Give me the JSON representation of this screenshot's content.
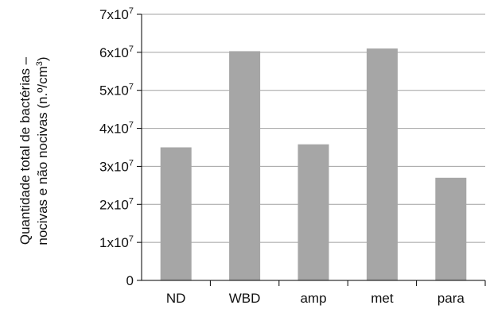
{
  "chart_data": {
    "type": "bar",
    "title": "",
    "xlabel": "",
    "ylabel_line1": "Quantidade total de bactérias –",
    "ylabel_line2_prefix": "nocivas e não nocivas (n.º/cm",
    "ylabel_line2_sup": "3",
    "ylabel_line2_suffix": ")",
    "categories": [
      "ND",
      "WBD",
      "amp",
      "met",
      "para"
    ],
    "values": [
      35000000,
      60300000,
      35800000,
      61000000,
      27000000
    ],
    "ylim": [
      0,
      70000000
    ],
    "yticks": [
      {
        "value": 0,
        "base": "0",
        "exp": ""
      },
      {
        "value": 10000000,
        "base": "1x10",
        "exp": "7"
      },
      {
        "value": 20000000,
        "base": "2x10",
        "exp": "7"
      },
      {
        "value": 30000000,
        "base": "3x10",
        "exp": "7"
      },
      {
        "value": 40000000,
        "base": "4x10",
        "exp": "7"
      },
      {
        "value": 50000000,
        "base": "5x10",
        "exp": "7"
      },
      {
        "value": 60000000,
        "base": "6x10",
        "exp": "7"
      },
      {
        "value": 70000000,
        "base": "7x10",
        "exp": "7"
      }
    ],
    "grid": true,
    "legend": "none",
    "bar_color": "#a6a6a6",
    "grid_color": "#a0a0a0",
    "axis_color": "#000000"
  }
}
